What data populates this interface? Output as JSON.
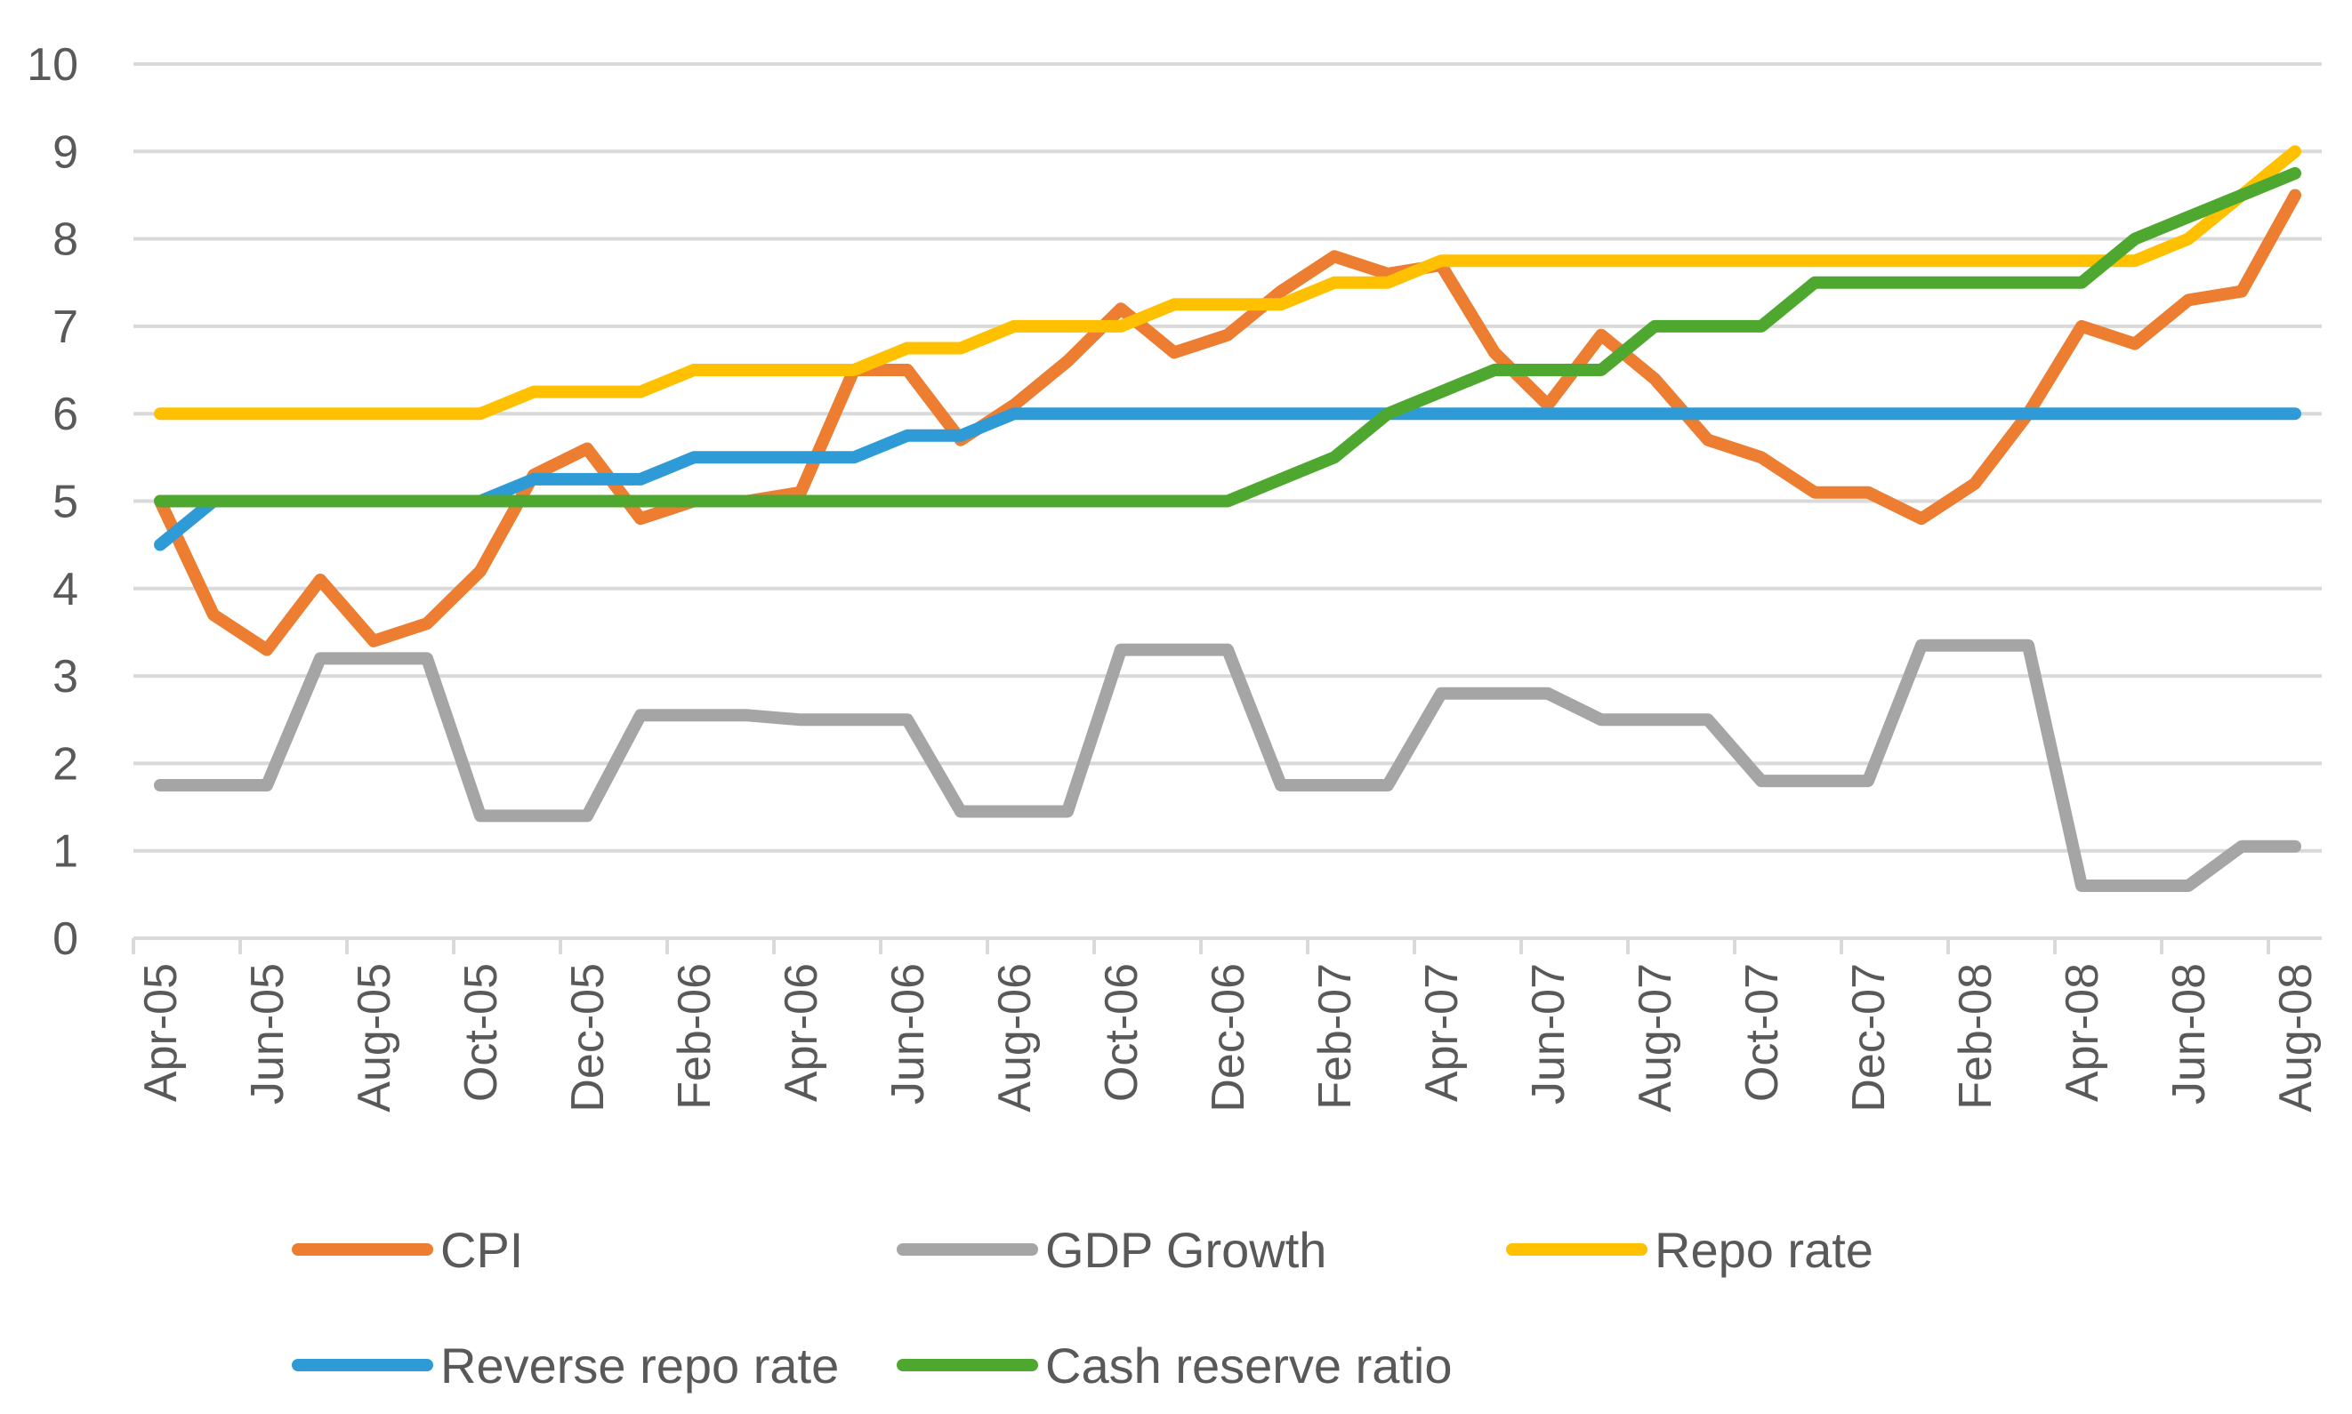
{
  "chart_data": {
    "type": "line",
    "title": "",
    "xlabel": "",
    "ylabel": "",
    "ylim": [
      0,
      10
    ],
    "yticks": [
      "0",
      "1",
      "2",
      "3",
      "4",
      "5",
      "6",
      "7",
      "8",
      "9",
      "10"
    ],
    "grid": "horizontal",
    "legend_position": "bottom",
    "x": [
      "Apr-05",
      "May-05",
      "Jun-05",
      "Jul-05",
      "Aug-05",
      "Sep-05",
      "Oct-05",
      "Nov-05",
      "Dec-05",
      "Jan-06",
      "Feb-06",
      "Mar-06",
      "Apr-06",
      "May-06",
      "Jun-06",
      "Jul-06",
      "Aug-06",
      "Sep-06",
      "Oct-06",
      "Nov-06",
      "Dec-06",
      "Jan-07",
      "Feb-07",
      "Mar-07",
      "Apr-07",
      "May-07",
      "Jun-07",
      "Jul-07",
      "Aug-07",
      "Sep-07",
      "Oct-07",
      "Nov-07",
      "Dec-07",
      "Jan-08",
      "Feb-08",
      "Mar-08",
      "Apr-08",
      "May-08",
      "Jun-08",
      "Jul-08",
      "Aug-08"
    ],
    "x_tick_labels": [
      "Apr-05",
      "Jun-05",
      "Aug-05",
      "Oct-05",
      "Dec-05",
      "Feb-06",
      "Apr-06",
      "Jun-06",
      "Aug-06",
      "Oct-06",
      "Dec-06",
      "Feb-07",
      "Apr-07",
      "Jun-07",
      "Aug-07",
      "Oct-07",
      "Dec-07",
      "Feb-08",
      "Apr-08",
      "Jun-08",
      "Aug-08"
    ],
    "series": [
      {
        "name": "CPI",
        "color": "#ED7D31",
        "values": [
          5.0,
          3.7,
          3.3,
          4.1,
          3.4,
          3.6,
          4.2,
          5.3,
          5.6,
          4.8,
          5.0,
          5.0,
          5.1,
          6.5,
          6.5,
          5.7,
          6.1,
          6.6,
          7.2,
          6.7,
          6.9,
          7.4,
          7.8,
          7.6,
          7.7,
          6.7,
          6.1,
          6.9,
          6.4,
          5.7,
          5.5,
          5.1,
          5.1,
          4.8,
          5.2,
          6.0,
          7.0,
          6.8,
          7.3,
          7.4,
          8.5
        ]
      },
      {
        "name": "GDP Growth",
        "color": "#A5A5A5",
        "values": [
          1.75,
          1.75,
          1.75,
          3.2,
          3.2,
          3.2,
          1.4,
          1.4,
          1.4,
          2.55,
          2.55,
          2.55,
          2.5,
          2.5,
          2.5,
          1.45,
          1.45,
          1.45,
          3.3,
          3.3,
          3.3,
          1.75,
          1.75,
          1.75,
          2.8,
          2.8,
          2.8,
          2.5,
          2.5,
          2.5,
          1.8,
          1.8,
          1.8,
          3.35,
          3.35,
          3.35,
          0.6,
          0.6,
          0.6,
          1.05,
          1.05
        ]
      },
      {
        "name": "Repo rate",
        "color": "#FFC000",
        "values": [
          6.0,
          6.0,
          6.0,
          6.0,
          6.0,
          6.0,
          6.0,
          6.25,
          6.25,
          6.25,
          6.5,
          6.5,
          6.5,
          6.5,
          6.75,
          6.75,
          7.0,
          7.0,
          7.0,
          7.25,
          7.25,
          7.25,
          7.5,
          7.5,
          7.75,
          7.75,
          7.75,
          7.75,
          7.75,
          7.75,
          7.75,
          7.75,
          7.75,
          7.75,
          7.75,
          7.75,
          7.75,
          7.75,
          8.0,
          8.5,
          9.0
        ]
      },
      {
        "name": "Reverse repo rate",
        "color": "#2E9BD6",
        "values": [
          4.5,
          5.0,
          5.0,
          5.0,
          5.0,
          5.0,
          5.0,
          5.25,
          5.25,
          5.25,
          5.5,
          5.5,
          5.5,
          5.5,
          5.75,
          5.75,
          6.0,
          6.0,
          6.0,
          6.0,
          6.0,
          6.0,
          6.0,
          6.0,
          6.0,
          6.0,
          6.0,
          6.0,
          6.0,
          6.0,
          6.0,
          6.0,
          6.0,
          6.0,
          6.0,
          6.0,
          6.0,
          6.0,
          6.0,
          6.0,
          6.0
        ]
      },
      {
        "name": "Cash reserve ratio",
        "color": "#4EA72E",
        "values": [
          5.0,
          5.0,
          5.0,
          5.0,
          5.0,
          5.0,
          5.0,
          5.0,
          5.0,
          5.0,
          5.0,
          5.0,
          5.0,
          5.0,
          5.0,
          5.0,
          5.0,
          5.0,
          5.0,
          5.0,
          5.0,
          5.25,
          5.5,
          6.0,
          6.25,
          6.5,
          6.5,
          6.5,
          7.0,
          7.0,
          7.0,
          7.5,
          7.5,
          7.5,
          7.5,
          7.5,
          7.5,
          8.0,
          8.25,
          8.5,
          8.75
        ]
      }
    ]
  }
}
